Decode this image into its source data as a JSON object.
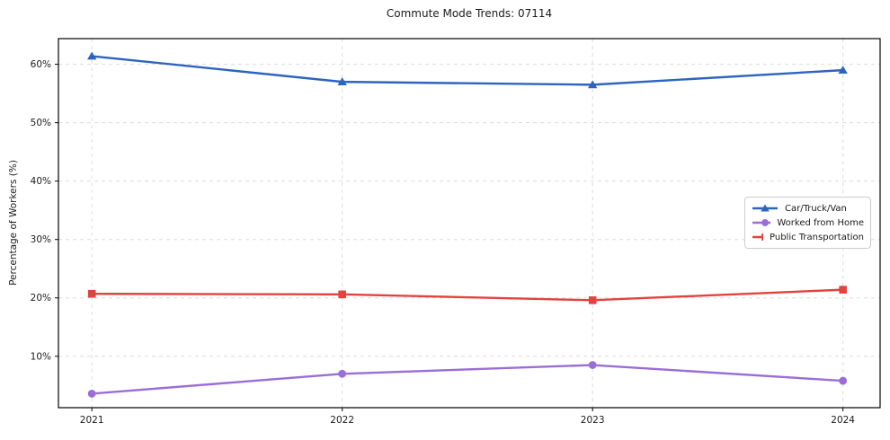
{
  "chart_data": {
    "type": "line",
    "title": "Commute Mode Trends: 07114",
    "xlabel": "",
    "ylabel": "Percentage of Workers (%)",
    "categories": [
      "2021",
      "2022",
      "2023",
      "2024"
    ],
    "series": [
      {
        "name": "Car/Truck/Van",
        "color": "#2d64bf",
        "marker": "triangle",
        "values": [
          61.4,
          57.0,
          56.5,
          59.0
        ]
      },
      {
        "name": "Worked from Home",
        "color": "#9a6dd7",
        "marker": "circle",
        "values": [
          3.6,
          7.0,
          8.5,
          5.8
        ]
      },
      {
        "name": "Public Transportation",
        "color": "#e2433e",
        "marker": "square",
        "values": [
          20.7,
          20.6,
          19.6,
          21.4
        ]
      }
    ],
    "yticks": [
      10,
      20,
      30,
      40,
      50,
      60
    ],
    "ytick_suffix": "%",
    "ylim": [
      1.2,
      64.4
    ],
    "xlim": [
      -0.1335,
      3.1485
    ],
    "grid": "dashed",
    "grid_color": "#dcdcdc",
    "spine_color": "#000000",
    "text_color": "#1a1a1a",
    "legend_position": "right"
  }
}
